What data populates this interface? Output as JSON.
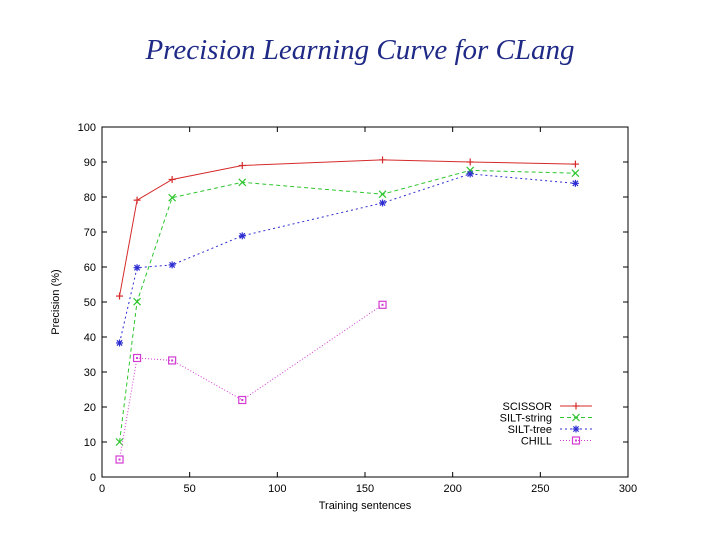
{
  "slide": {
    "title": "Precision Learning Curve for CLang"
  },
  "chart_data": {
    "type": "line",
    "title": "",
    "xlabel": "Training sentences",
    "ylabel": "Precision (%)",
    "xlim": [
      0,
      300
    ],
    "ylim": [
      0,
      100
    ],
    "xticks": [
      0,
      50,
      100,
      150,
      200,
      250,
      300
    ],
    "yticks": [
      0,
      10,
      20,
      30,
      40,
      50,
      60,
      70,
      80,
      90,
      100
    ],
    "grid": false,
    "legend_position": "bottom-right",
    "series": [
      {
        "name": "SCISSOR",
        "color": "#d62a2a",
        "marker": "plus",
        "dash": "",
        "x": [
          10,
          20,
          40,
          80,
          160,
          210,
          270
        ],
        "y": [
          51.7,
          79.1,
          85.0,
          89.0,
          90.6,
          90.0,
          89.4
        ]
      },
      {
        "name": "SILT-string",
        "color": "#2ec62e",
        "marker": "cross",
        "dash": "4,3",
        "x": [
          10,
          20,
          40,
          80,
          160,
          210,
          270
        ],
        "y": [
          10.0,
          50.1,
          79.8,
          84.2,
          80.8,
          87.6,
          86.8
        ]
      },
      {
        "name": "SILT-tree",
        "color": "#2d2dd2",
        "marker": "star",
        "dash": "2,3",
        "x": [
          10,
          20,
          40,
          80,
          160,
          210,
          270
        ],
        "y": [
          38.3,
          59.8,
          60.6,
          68.9,
          78.3,
          86.6,
          83.9
        ]
      },
      {
        "name": "CHILL",
        "color": "#d23cd2",
        "marker": "square",
        "dash": "1,2",
        "x": [
          10,
          20,
          40,
          80,
          160
        ],
        "y": [
          5.0,
          34.0,
          33.3,
          22.0,
          49.2
        ]
      }
    ]
  }
}
